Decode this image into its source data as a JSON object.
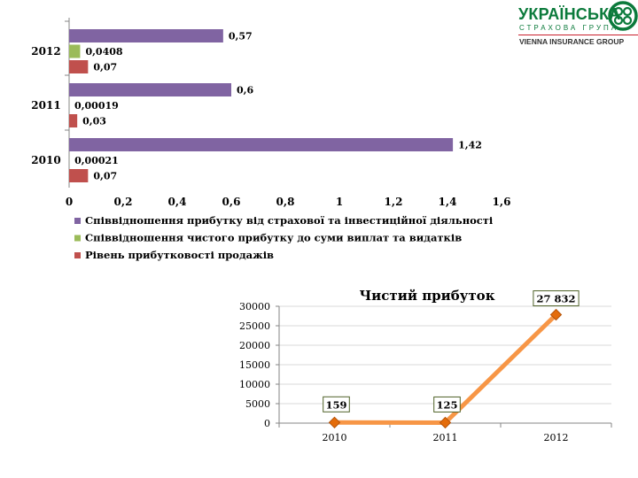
{
  "logo": {
    "title": "УКРАЇНСЬКА",
    "subtitle": "СТРАХОВА ГРУПА",
    "tagline": "VIENNA INSURANCE GROUP",
    "icon": "rings-logo-icon",
    "brand_color": "#0b7a3b",
    "line_color": "#c81f2c"
  },
  "chart_data": [
    {
      "type": "bar",
      "orientation": "horizontal",
      "categories": [
        "2012",
        "2011",
        "2010"
      ],
      "series": [
        {
          "name": "Співвідношення прибутку від страхової та інвестиційної діяльності",
          "values": [
            0.57,
            0.6,
            1.42
          ],
          "labels": [
            "0,57",
            "0,6",
            "1,42"
          ],
          "color": "#8064a2"
        },
        {
          "name": "Співвідношення чистого прибутку до суми виплат та видатків",
          "values": [
            0.0408,
            0.00019,
            0.00021
          ],
          "labels": [
            "0,0408",
            "0,00019",
            "0,00021"
          ],
          "color": "#9bbb59"
        },
        {
          "name": "Рівень прибутковості продажів",
          "values": [
            0.07,
            0.03,
            0.07
          ],
          "labels": [
            "0,07",
            "0,03",
            "0,07"
          ],
          "color": "#c0504d"
        }
      ],
      "xlim": [
        0,
        1.6
      ],
      "xticks": [
        "0",
        "0,2",
        "0,4",
        "0,6",
        "0,8",
        "1",
        "1,2",
        "1,4",
        "1,6"
      ],
      "grid": false,
      "legend_position": "bottom"
    },
    {
      "type": "line",
      "title": "Чистий прибуток",
      "x": [
        "2010",
        "2011",
        "2012"
      ],
      "series": [
        {
          "values": [
            159,
            125,
            27832
          ],
          "labels": [
            "159",
            "125",
            "27 832"
          ],
          "color": "#f79646"
        }
      ],
      "ylim": [
        0,
        30000
      ],
      "yticks": [
        "0",
        "5000",
        "10000",
        "15000",
        "20000",
        "25000",
        "30000"
      ],
      "grid": true,
      "legend_position": "none"
    }
  ]
}
